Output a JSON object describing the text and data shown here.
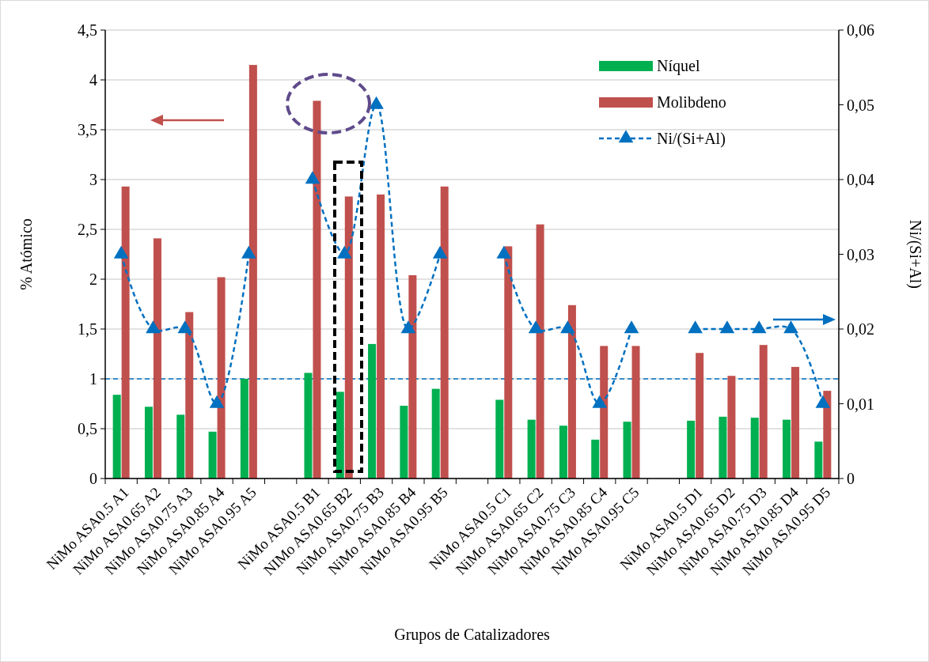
{
  "chart_data": {
    "type": "bar",
    "xlabel": "Grupos de Catalizadores",
    "ylabel": "% Atómico",
    "y2label": "Ni/(Si+Al)",
    "categories": [
      "NiMo ASA0.5 A1",
      "NiMo ASA0.65 A2",
      "NiMo ASA0.75 A3",
      "NiMo ASA0.85 A4",
      "NiMo ASA0.95 A5",
      null,
      "NiMo ASA0.5 B1",
      "NIMo ASA0.65 B2",
      "NiMo ASA0.75 B3",
      "NiMo ASA0.85 B4",
      "NiMo ASA0.95 B5",
      null,
      "NiMo ASA0.5 C1",
      "NiMo ASA0.65 C2",
      "NiMo ASA0.75 C3",
      "NiMo ASA0.85 C4",
      "NiMo ASA0.95 C5",
      null,
      "NiMo ASA0.5 D1",
      "NiMo ASA0.65 D2",
      "NiMo ASA0.75 D3",
      "NiMo ASA0.85 D4",
      "NiMo ASA0.95 D5"
    ],
    "series": [
      {
        "name": "Níquel",
        "color": "#00b050",
        "values": [
          0.84,
          0.72,
          0.64,
          0.47,
          1.0,
          null,
          1.06,
          0.87,
          1.35,
          0.73,
          0.9,
          null,
          0.79,
          0.59,
          0.53,
          0.39,
          0.57,
          null,
          0.58,
          0.62,
          0.61,
          0.59,
          0.37
        ]
      },
      {
        "name": "Molibdeno",
        "color": "#c0504d",
        "values": [
          2.93,
          2.41,
          1.67,
          2.02,
          4.15,
          null,
          3.79,
          2.83,
          2.85,
          2.04,
          2.93,
          null,
          2.33,
          2.55,
          1.74,
          1.33,
          1.33,
          null,
          1.26,
          1.03,
          1.34,
          1.12,
          0.88
        ]
      },
      {
        "name": "Ni/(Si+Al)",
        "type": "line",
        "axis": "y2",
        "color": "#0070c0",
        "marker": "triangle",
        "line_style": "dashed",
        "values": [
          0.03,
          0.02,
          0.02,
          0.01,
          0.03,
          null,
          0.04,
          0.03,
          0.05,
          0.02,
          0.03,
          null,
          0.03,
          0.02,
          0.02,
          0.01,
          0.02,
          null,
          0.02,
          0.02,
          0.02,
          0.02,
          0.01
        ]
      }
    ],
    "ylim": [
      0,
      4.5
    ],
    "yticks": [
      0,
      {
        "value": 0.5,
        "label": "0,5"
      },
      1,
      {
        "value": 1.5,
        "label": "1,5"
      },
      2,
      {
        "value": 2.5,
        "label": "2,5"
      },
      3,
      {
        "value": 3.5,
        "label": "3,5"
      },
      4,
      {
        "value": 4.5,
        "label": "4,5"
      }
    ],
    "y2lim": [
      0,
      0.06
    ],
    "y2ticks": [
      0,
      {
        "value": 0.01,
        "label": "0,01"
      },
      {
        "value": 0.02,
        "label": "0,02"
      },
      {
        "value": 0.03,
        "label": "0,03"
      },
      {
        "value": 0.04,
        "label": "0,04"
      },
      {
        "value": 0.05,
        "label": "0,05"
      },
      {
        "value": 0.06,
        "label": "0,06"
      }
    ],
    "ref_lines": [
      {
        "axis": "y",
        "value": 1,
        "color": "#0070c0",
        "line_style": "dashed"
      }
    ],
    "grid": "y",
    "legend": "top right"
  }
}
